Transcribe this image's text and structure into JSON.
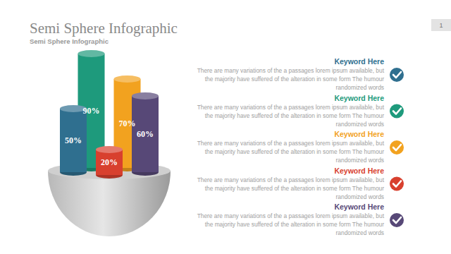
{
  "chart_data": {
    "type": "bar",
    "title": "Semi Sphere Infographic",
    "subtitle": "Semi Sphere Infographic",
    "values": [
      50,
      90,
      20,
      70,
      60
    ],
    "value_labels": [
      "50%",
      "90%",
      "20%",
      "70%",
      "60%"
    ],
    "colors": [
      "#2f6f8f",
      "#1e9a7c",
      "#d8402e",
      "#f2a21f",
      "#574877"
    ],
    "ylim": [
      0,
      100
    ],
    "data_labels": true,
    "tick_labels": false
  },
  "page": {
    "number": "1"
  },
  "items": [
    {
      "title": "Keyword Here",
      "lines": [
        "There are many variations of the a passages lorem ipsum available, but",
        "the majority have suffered  of the alteration in some form  The humour",
        "randomized words"
      ]
    },
    {
      "title": "Keyword Here",
      "lines": [
        "There are many variations of the a passages lorem ipsum available, but",
        "the majority have suffered  of the alteration in some form  The humour",
        "randomized words"
      ]
    },
    {
      "title": "Keyword Here",
      "lines": [
        "There are many variations of the a passages lorem ipsum available, but",
        "the majority have suffered  of the alteration in some form  The humour",
        "randomized words"
      ]
    },
    {
      "title": "Keyword Here",
      "lines": [
        "There are many variations of the a passages lorem ipsum available, but",
        "the majority have suffered  of the alteration in some form  The humour",
        "randomized words"
      ]
    },
    {
      "title": "Keyword Here",
      "lines": [
        "There are many variations of the a passages lorem ipsum available, but",
        "the majority have suffered  of the alteration in some form  The humour",
        "randomized words"
      ]
    }
  ]
}
